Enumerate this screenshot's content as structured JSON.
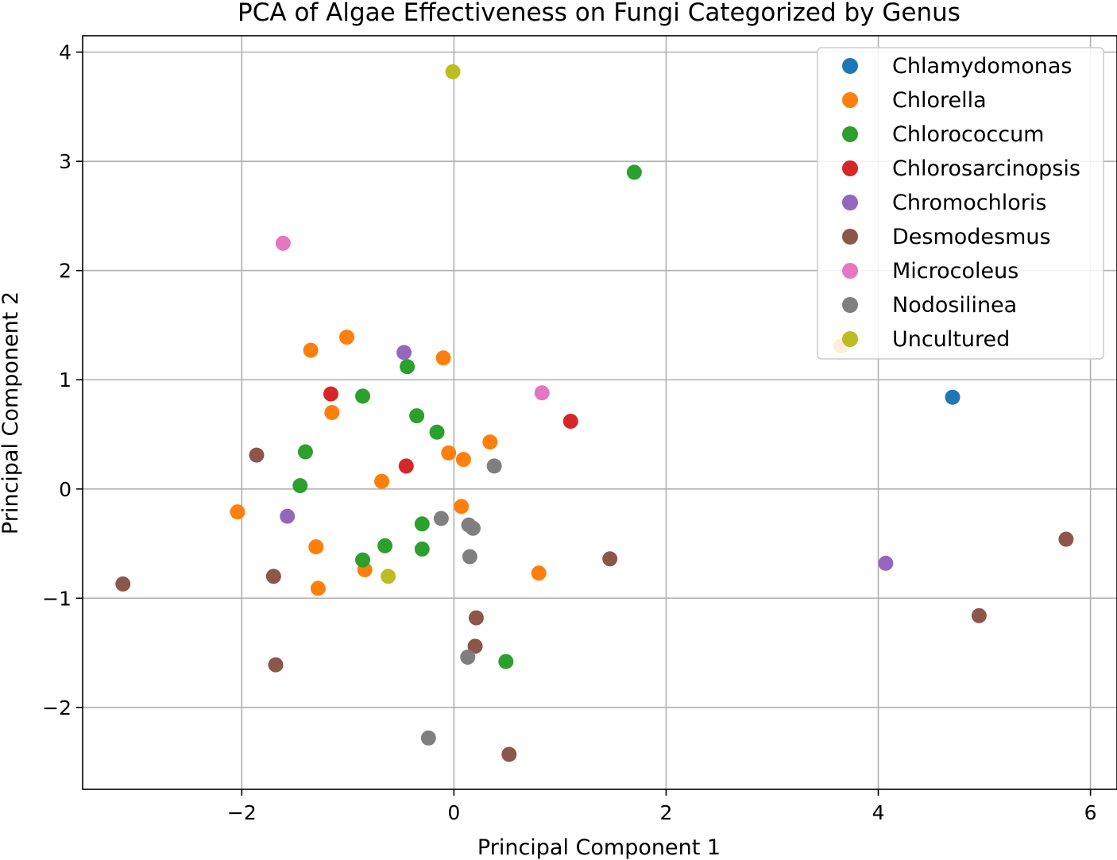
{
  "chart_data": {
    "type": "scatter",
    "title": "PCA of Algae Effectiveness on Fungi Categorized by Genus",
    "xlabel": "Principal Component 1",
    "ylabel": "Principal Component 2",
    "xlim": [
      -3.5,
      6.25
    ],
    "ylim": [
      -2.75,
      4.15
    ],
    "xticks": [
      -2,
      0,
      2,
      4,
      6
    ],
    "yticks": [
      -2,
      -1,
      0,
      1,
      2,
      3,
      4
    ],
    "xtick_labels": [
      "−2",
      "0",
      "2",
      "4",
      "6"
    ],
    "ytick_labels": [
      "−2",
      "−1",
      "0",
      "1",
      "2",
      "3",
      "4"
    ],
    "grid": true,
    "legend_position": "top-right",
    "series": [
      {
        "name": "Chlamydomonas",
        "color": "#1f77b4",
        "points": [
          [
            4.7,
            0.84
          ]
        ]
      },
      {
        "name": "Chlorella",
        "color": "#ff7f0e",
        "points": [
          [
            -1.01,
            1.39
          ],
          [
            -1.35,
            1.27
          ],
          [
            -0.1,
            1.2
          ],
          [
            -1.15,
            0.7
          ],
          [
            0.34,
            0.43
          ],
          [
            -0.05,
            0.33
          ],
          [
            0.09,
            0.27
          ],
          [
            -0.68,
            0.07
          ],
          [
            -2.04,
            -0.21
          ],
          [
            0.07,
            -0.16
          ],
          [
            -1.3,
            -0.53
          ],
          [
            -0.84,
            -0.74
          ],
          [
            -1.28,
            -0.91
          ],
          [
            0.8,
            -0.77
          ],
          [
            3.65,
            1.31
          ]
        ]
      },
      {
        "name": "Chlorococcum",
        "color": "#2ca02c",
        "points": [
          [
            1.7,
            2.9
          ],
          [
            -0.44,
            1.12
          ],
          [
            -0.86,
            0.85
          ],
          [
            -0.35,
            0.67
          ],
          [
            -0.16,
            0.52
          ],
          [
            -1.4,
            0.34
          ],
          [
            -1.45,
            0.03
          ],
          [
            -0.3,
            -0.32
          ],
          [
            -0.65,
            -0.52
          ],
          [
            -0.3,
            -0.55
          ],
          [
            -0.86,
            -0.65
          ],
          [
            0.49,
            -1.58
          ]
        ]
      },
      {
        "name": "Chlorosarcinopsis",
        "color": "#d62728",
        "points": [
          [
            -1.16,
            0.87
          ],
          [
            1.1,
            0.62
          ],
          [
            -0.45,
            0.21
          ]
        ]
      },
      {
        "name": "Chromochloris",
        "color": "#9467bd",
        "points": [
          [
            -0.47,
            1.25
          ],
          [
            -1.57,
            -0.25
          ],
          [
            4.07,
            -0.68
          ]
        ]
      },
      {
        "name": "Desmodesmus",
        "color": "#8c564b",
        "points": [
          [
            -1.86,
            0.31
          ],
          [
            -3.12,
            -0.87
          ],
          [
            -1.7,
            -0.8
          ],
          [
            -1.68,
            -1.61
          ],
          [
            1.47,
            -0.64
          ],
          [
            0.21,
            -1.18
          ],
          [
            0.2,
            -1.44
          ],
          [
            0.52,
            -2.43
          ],
          [
            4.95,
            -1.16
          ],
          [
            5.77,
            -0.46
          ]
        ]
      },
      {
        "name": "Microcoleus",
        "color": "#e377c2",
        "points": [
          [
            -1.61,
            2.25
          ],
          [
            0.83,
            0.88
          ]
        ]
      },
      {
        "name": "Nodosilinea",
        "color": "#7f7f7f",
        "points": [
          [
            0.38,
            0.21
          ],
          [
            -0.12,
            -0.27
          ],
          [
            0.14,
            -0.33
          ],
          [
            0.18,
            -0.36
          ],
          [
            0.15,
            -0.62
          ],
          [
            0.13,
            -1.54
          ],
          [
            -0.24,
            -2.28
          ]
        ]
      },
      {
        "name": "Uncultured",
        "color": "#bcbd22",
        "points": [
          [
            -0.01,
            3.82
          ],
          [
            -0.62,
            -0.8
          ]
        ]
      }
    ]
  }
}
